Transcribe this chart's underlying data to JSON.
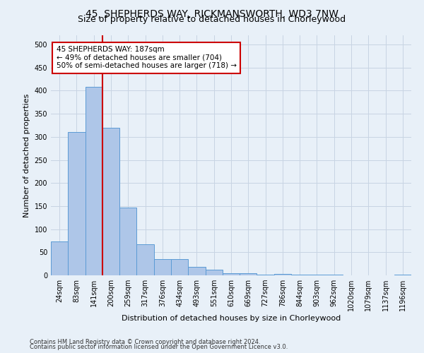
{
  "title": "45, SHEPHERDS WAY, RICKMANSWORTH, WD3 7NW",
  "subtitle": "Size of property relative to detached houses in Chorleywood",
  "xlabel": "Distribution of detached houses by size in Chorleywood",
  "ylabel": "Number of detached properties",
  "footnote1": "Contains HM Land Registry data © Crown copyright and database right 2024.",
  "footnote2": "Contains public sector information licensed under the Open Government Licence v3.0.",
  "bar_labels": [
    "24sqm",
    "83sqm",
    "141sqm",
    "200sqm",
    "259sqm",
    "317sqm",
    "376sqm",
    "434sqm",
    "493sqm",
    "551sqm",
    "610sqm",
    "669sqm",
    "727sqm",
    "786sqm",
    "844sqm",
    "903sqm",
    "962sqm",
    "1020sqm",
    "1079sqm",
    "1137sqm",
    "1196sqm"
  ],
  "bar_values": [
    73,
    311,
    408,
    320,
    147,
    68,
    35,
    35,
    18,
    12,
    5,
    5,
    1,
    3,
    1,
    1,
    1,
    0,
    0,
    0,
    1
  ],
  "bar_color": "#aec6e8",
  "bar_edgecolor": "#5b9bd5",
  "vline_color": "#cc0000",
  "annotation_text": "45 SHEPHERDS WAY: 187sqm\n← 49% of detached houses are smaller (704)\n50% of semi-detached houses are larger (718) →",
  "annotation_box_color": "#ffffff",
  "annotation_box_edgecolor": "#cc0000",
  "ylim": [
    0,
    520
  ],
  "yticks": [
    0,
    50,
    100,
    150,
    200,
    250,
    300,
    350,
    400,
    450,
    500
  ],
  "grid_color": "#c8d4e3",
  "bg_color": "#e8f0f8",
  "title_fontsize": 10,
  "subtitle_fontsize": 9,
  "annotation_fontsize": 7.5,
  "tick_fontsize": 7,
  "ylabel_fontsize": 8,
  "xlabel_fontsize": 8,
  "footnote_fontsize": 6
}
